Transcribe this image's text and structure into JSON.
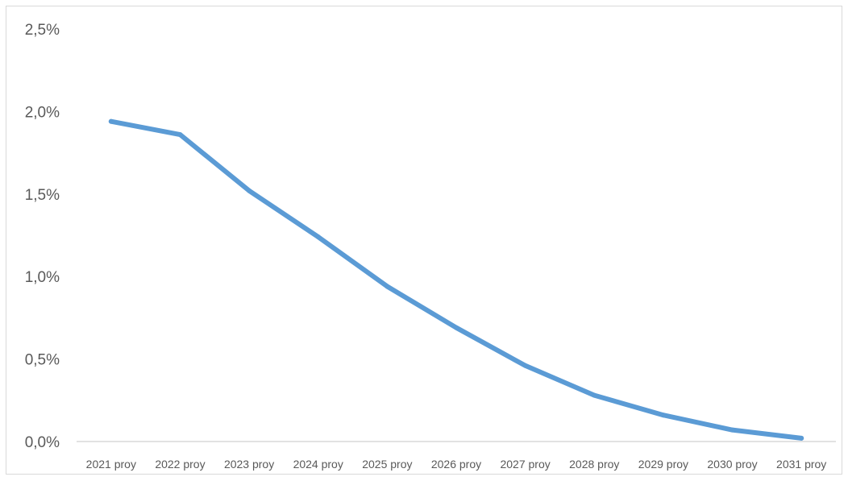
{
  "chart_data": {
    "type": "line",
    "title": "",
    "xlabel": "",
    "ylabel": "",
    "categories": [
      "2021 proy",
      "2022 proy",
      "2023 proy",
      "2024 proy",
      "2025 proy",
      "2026 proy",
      "2027 proy",
      "2028 proy",
      "2029 proy",
      "2030 proy",
      "2031 proy"
    ],
    "series": [
      {
        "values": [
          1.94,
          1.86,
          1.52,
          1.24,
          0.94,
          0.69,
          0.46,
          0.28,
          0.16,
          0.07,
          0.02
        ]
      }
    ],
    "yticks": [
      0,
      0.5,
      1.0,
      1.5,
      2.0,
      2.5
    ],
    "ytick_labels": [
      "0,0%",
      "0,5%",
      "1,0%",
      "1,5%",
      "2,0%",
      "2,5%"
    ],
    "ylim": [
      0,
      2.5
    ],
    "grid": false,
    "legend": "none",
    "colors": {
      "line": "#5b9bd5",
      "axis": "#d9d9d9",
      "text": "#595959"
    }
  }
}
